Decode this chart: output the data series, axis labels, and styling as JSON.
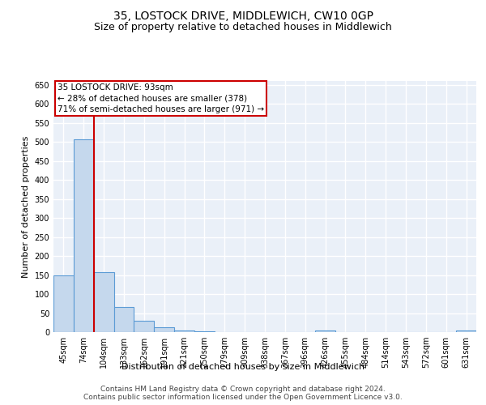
{
  "title": "35, LOSTOCK DRIVE, MIDDLEWICH, CW10 0GP",
  "subtitle": "Size of property relative to detached houses in Middlewich",
  "xlabel": "Distribution of detached houses by size in Middlewich",
  "ylabel": "Number of detached properties",
  "categories": [
    "45sqm",
    "74sqm",
    "104sqm",
    "133sqm",
    "162sqm",
    "191sqm",
    "221sqm",
    "250sqm",
    "279sqm",
    "309sqm",
    "338sqm",
    "367sqm",
    "396sqm",
    "426sqm",
    "455sqm",
    "484sqm",
    "514sqm",
    "543sqm",
    "572sqm",
    "601sqm",
    "631sqm"
  ],
  "values": [
    148,
    507,
    157,
    65,
    30,
    12,
    5,
    2,
    0,
    0,
    0,
    0,
    0,
    5,
    0,
    0,
    0,
    0,
    0,
    0,
    5
  ],
  "bar_color": "#c5d8ed",
  "bar_edge_color": "#5b9bd5",
  "background_color": "#eaf0f8",
  "grid_color": "#ffffff",
  "annotation_box_text": "35 LOSTOCK DRIVE: 93sqm\n← 28% of detached houses are smaller (378)\n71% of semi-detached houses are larger (971) →",
  "annotation_box_color": "#cc0000",
  "red_line_x": 1.5,
  "ylim": [
    0,
    660
  ],
  "yticks": [
    0,
    50,
    100,
    150,
    200,
    250,
    300,
    350,
    400,
    450,
    500,
    550,
    600,
    650
  ],
  "footer": "Contains HM Land Registry data © Crown copyright and database right 2024.\nContains public sector information licensed under the Open Government Licence v3.0.",
  "title_fontsize": 10,
  "subtitle_fontsize": 9,
  "axis_fontsize": 8,
  "tick_fontsize": 7,
  "footer_fontsize": 6.5,
  "annotation_fontsize": 7.5
}
